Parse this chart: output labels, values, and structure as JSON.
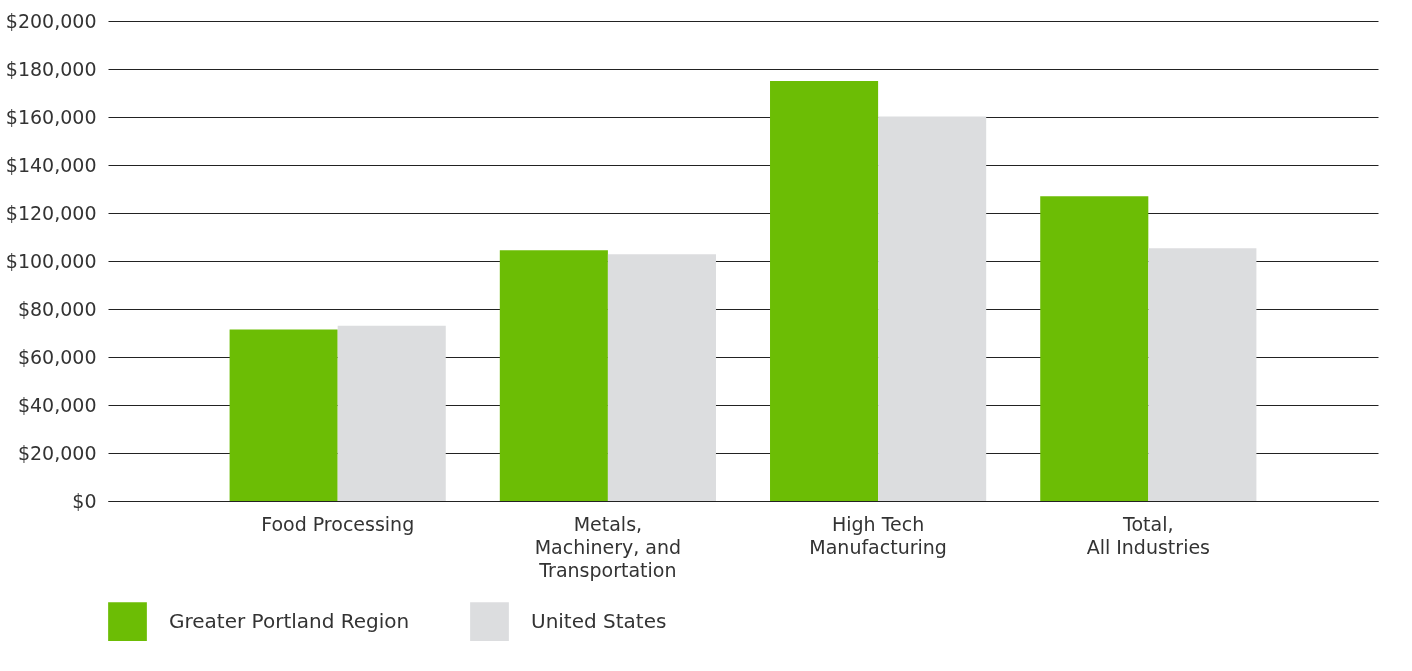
{
  "chart_data": {
    "type": "bar",
    "categories": [
      "Food Processing",
      "Metals,\nMachinery, and\nTransportation",
      "High Tech\nManufacturing",
      "Total,\nAll Industries"
    ],
    "series": [
      {
        "name": "Greater Portland Region",
        "color": "#6cbd05",
        "values": [
          71500,
          104500,
          175000,
          127000
        ]
      },
      {
        "name": "United States",
        "color": "#dcdddf",
        "values": [
          73000,
          102800,
          160200,
          105300
        ]
      }
    ],
    "ylim": [
      0,
      200000
    ],
    "yticks": [
      {
        "value": 0,
        "label": "$0"
      },
      {
        "value": 20000,
        "label": "$20,000"
      },
      {
        "value": 40000,
        "label": "$40,000"
      },
      {
        "value": 60000,
        "label": "$60,000"
      },
      {
        "value": 80000,
        "label": "$80,000"
      },
      {
        "value": 100000,
        "label": "$100,000"
      },
      {
        "value": 120000,
        "label": "$120,000"
      },
      {
        "value": 140000,
        "label": "$140,000"
      },
      {
        "value": 160000,
        "label": "$160,000"
      },
      {
        "value": 180000,
        "label": "$180,000"
      },
      {
        "value": 200000,
        "label": "$200,000"
      }
    ],
    "grid": "y",
    "legend": "bottom"
  }
}
